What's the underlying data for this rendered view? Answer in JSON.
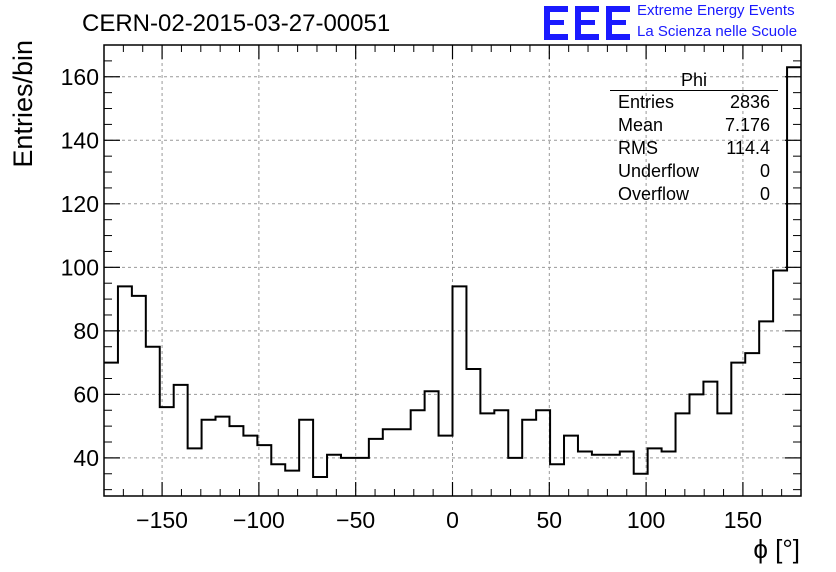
{
  "header": {
    "title": "CERN-02-2015-03-27-00051",
    "logo_line1": "Extreme Energy Events",
    "logo_line2": "La Scienza nelle Scuole",
    "logo_color": "#1a1aff"
  },
  "stats": {
    "title": "Phi",
    "rows": [
      {
        "label": "Entries",
        "value": "2836"
      },
      {
        "label": "Mean",
        "value": "7.176"
      },
      {
        "label": "RMS",
        "value": "114.4"
      },
      {
        "label": "Underflow",
        "value": "0"
      },
      {
        "label": "Overflow",
        "value": "0"
      }
    ]
  },
  "chart_data": {
    "type": "histogram",
    "title": "CERN-02-2015-03-27-00051",
    "xlabel": "ϕ [°]",
    "ylabel": "Entries/bin",
    "xlim": [
      -180,
      180
    ],
    "ylim": [
      28,
      170
    ],
    "grid": true,
    "bin_width": 7.2,
    "x_ticks": [
      -150,
      -100,
      -50,
      0,
      50,
      100,
      150
    ],
    "y_ticks": [
      40,
      60,
      80,
      100,
      120,
      140,
      160
    ],
    "values": [
      70,
      94,
      91,
      75,
      56,
      63,
      43,
      52,
      53,
      50,
      47,
      44,
      38,
      36,
      52,
      34,
      41,
      40,
      40,
      46,
      49,
      49,
      55,
      61,
      47,
      94,
      68,
      54,
      55,
      40,
      52,
      55,
      38,
      47,
      42,
      41,
      41,
      42,
      35,
      43,
      42,
      54,
      60,
      64,
      54,
      70,
      73,
      83,
      99,
      163
    ]
  }
}
